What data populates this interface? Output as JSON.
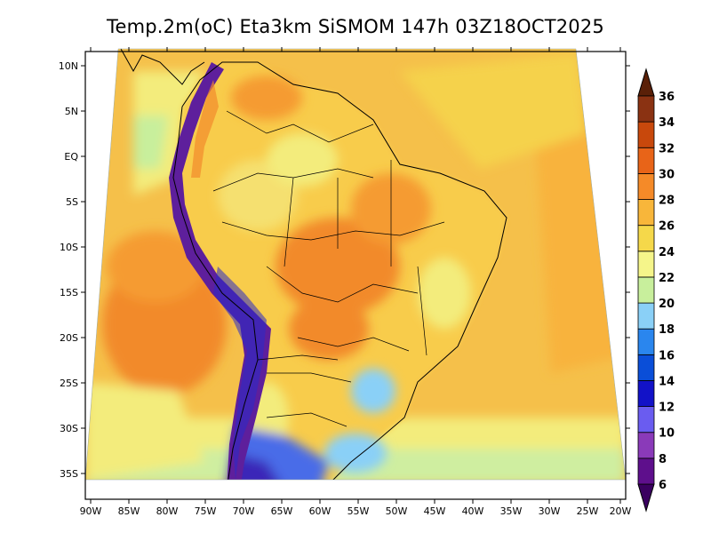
{
  "title": "Temp.2m(oC) Eta3km SiSMOM 147h 03Z18OCT2025",
  "map": {
    "lon_ticks": [
      "90W",
      "85W",
      "80W",
      "75W",
      "70W",
      "65W",
      "60W",
      "55W",
      "50W",
      "45W",
      "40W",
      "35W",
      "30W",
      "25W",
      "20W"
    ],
    "lat_ticks": [
      "10N",
      "5N",
      "EQ",
      "5S",
      "10S",
      "15S",
      "20S",
      "25S",
      "30S",
      "35S"
    ],
    "lon_range": [
      -91,
      -20
    ],
    "lat_range": [
      12,
      -38
    ]
  },
  "colorbar": {
    "labels": [
      "6",
      "8",
      "10",
      "12",
      "14",
      "16",
      "18",
      "20",
      "22",
      "24",
      "26",
      "28",
      "30",
      "32",
      "34",
      "36"
    ],
    "colors": [
      "#5e0f8c",
      "#8a3ab9",
      "#6a5cf0",
      "#1212c8",
      "#0a4ed8",
      "#2a86ee",
      "#8ad0f7",
      "#c8ef9c",
      "#f5f58a",
      "#f5d84a",
      "#f8b63a",
      "#f58a28",
      "#e86418",
      "#c8480c",
      "#8a3212"
    ],
    "colors_meaning": "bins between consecutive labels",
    "under_color": "#3a0060",
    "over_color": "#5a2008"
  }
}
